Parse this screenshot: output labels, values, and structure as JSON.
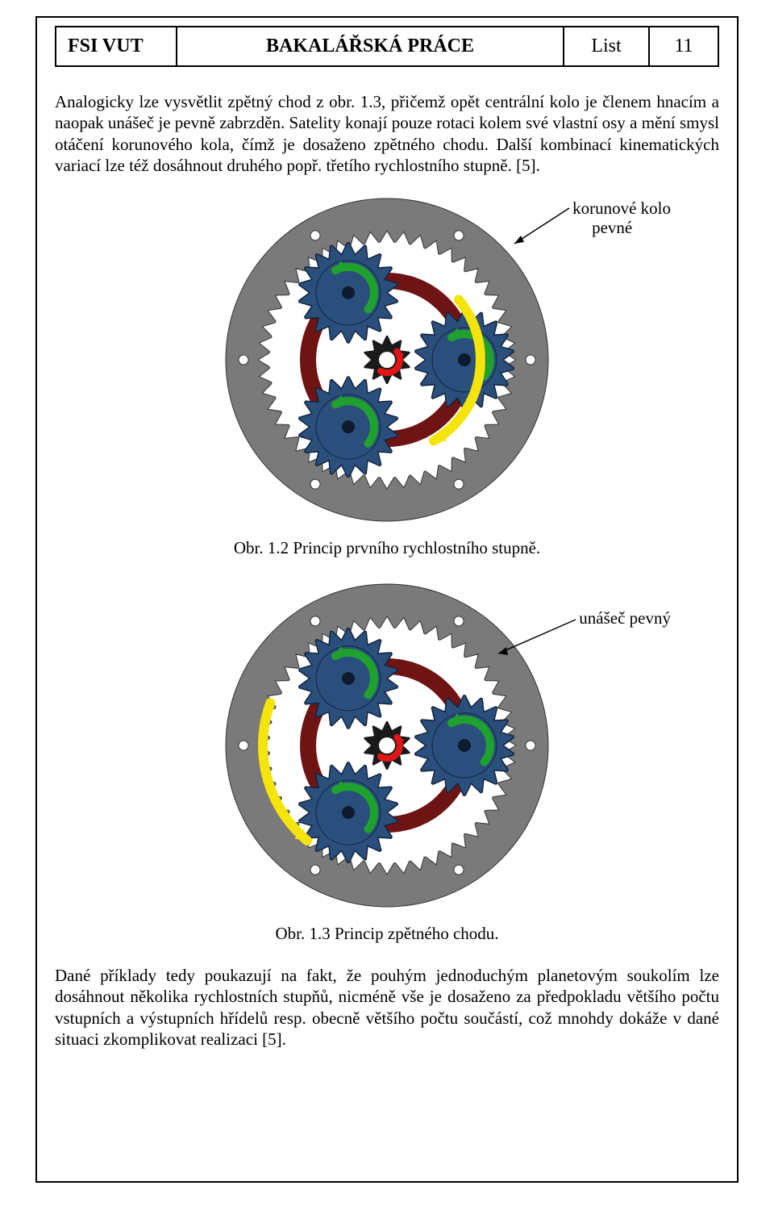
{
  "header": {
    "left": "FSI VUT",
    "mid": "BAKALÁŘSKÁ PRÁCE",
    "list_label": "List",
    "page_num": "11"
  },
  "para1": "Analogicky lze vysvětlit zpětný chod z obr. 1.3, přičemž opět centrální kolo je členem hnacím a naopak unášeč je pevně zabrzděn. Satelity konají pouze rotaci kolem své vlastní osy a mění smysl otáčení korunového kola, čímž je dosaženo zpětného chodu. Další kombinací kinematických variací lze též dosáhnout druhého popř. třetího rychlostního stupně. [5].",
  "para2": "Dané příklady tedy poukazují na fakt, že pouhým jednoduchým planetovým soukolím lze dosáhnout několika rychlostních stupňů, nicméně vše je dosaženo za předpokladu většího počtu vstupních a výstupních hřídelů resp. obecně většího počtu součástí, což mnohdy dokáže v dané situaci zkomplikovat realizaci [5].",
  "figure1": {
    "annotation_l1": "korunové kolo",
    "annotation_l2": "pevné",
    "caption": "Obr. 1.2 Princip prvního rychlostního stupně."
  },
  "figure2": {
    "annotation": "unášeč pevný",
    "caption": "Obr. 1.3 Princip zpětného chodu."
  },
  "colors": {
    "ring_gear": "#7a7a7a",
    "ring_gear_inner": "#9a9a9a",
    "carrier_ring": "#6e1414",
    "planet_gear": "#2b4f7d",
    "planet_gear_stroke": "#12243a",
    "sun_gear": "#1a1a1a",
    "sun_inner": "#ffffff",
    "arrow_green": "#1fa12e",
    "arrow_yellow": "#f5e40a",
    "arrow_red": "#e01515",
    "hole": "#ffffff"
  },
  "gear_assembly": {
    "ring_outer_r": 200,
    "ring_inner_r": 160,
    "ring_teeth": 48,
    "carrier_r": 98,
    "carrier_stroke_w": 20,
    "planet_r": 62,
    "planet_teeth": 18,
    "planet_orbit_r": 96,
    "planet_angles_deg": [
      90,
      210,
      330
    ],
    "sun_r": 30,
    "sun_teeth": 10,
    "hole_r": 6,
    "hole_orbit_r": 178,
    "hole_angles_deg": [
      60,
      120,
      180,
      240,
      300,
      360
    ]
  }
}
